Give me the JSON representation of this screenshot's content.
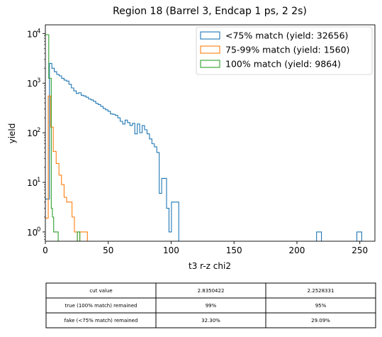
{
  "chart_data": {
    "type": "histogram",
    "title": "Region 18 (Barrel 3, Endcap 1 ps, 2 2s)",
    "xlabel": "t3 r-z chi2",
    "ylabel": "yield",
    "xlim": [
      0,
      262
    ],
    "ylim": [
      0.65,
      15000
    ],
    "yscale": "log",
    "grid": false,
    "legend_position": "top-right",
    "x_ticks": [
      {
        "value": 0,
        "label": "0"
      },
      {
        "value": 50,
        "label": "50"
      },
      {
        "value": 100,
        "label": "100"
      },
      {
        "value": 150,
        "label": "150"
      },
      {
        "value": 200,
        "label": "200"
      },
      {
        "value": 250,
        "label": "250"
      }
    ],
    "y_ticks": [
      {
        "value": 1,
        "label": "10",
        "exp": "0"
      },
      {
        "value": 10,
        "label": "10",
        "exp": "1"
      },
      {
        "value": 100,
        "label": "10",
        "exp": "2"
      },
      {
        "value": 1000,
        "label": "10",
        "exp": "3"
      },
      {
        "value": 10000,
        "label": "10",
        "exp": "4"
      }
    ],
    "series": [
      {
        "name": "<75% match (yield: 32656)",
        "color": "#1f77b4",
        "points": [
          [
            0,
            4.6
          ],
          [
            3.24,
            2500
          ],
          [
            5.17,
            2000
          ],
          [
            7.11,
            1700
          ],
          [
            9.05,
            1500
          ],
          [
            10.99,
            1400
          ],
          [
            12.93,
            1250
          ],
          [
            14.87,
            1150
          ],
          [
            16.81,
            1100
          ],
          [
            18.75,
            950
          ],
          [
            20.69,
            800
          ],
          [
            22.63,
            700
          ],
          [
            24.57,
            620
          ],
          [
            26.51,
            640
          ],
          [
            28.45,
            570
          ],
          [
            30.39,
            550
          ],
          [
            32.33,
            520
          ],
          [
            34.27,
            480
          ],
          [
            36.21,
            460
          ],
          [
            38.15,
            430
          ],
          [
            40.09,
            390
          ],
          [
            42.03,
            370
          ],
          [
            43.97,
            340
          ],
          [
            45.91,
            310
          ],
          [
            47.85,
            290
          ],
          [
            49.79,
            270
          ],
          [
            51.73,
            240
          ],
          [
            53.67,
            235
          ],
          [
            55.61,
            225
          ],
          [
            57.55,
            200
          ],
          [
            59.49,
            170
          ],
          [
            61.43,
            150
          ],
          [
            63.37,
            180
          ],
          [
            65.31,
            160
          ],
          [
            67.25,
            140
          ],
          [
            69.19,
            155
          ],
          [
            71.13,
            95
          ],
          [
            73.07,
            150
          ],
          [
            75.01,
            100
          ],
          [
            76.95,
            140
          ],
          [
            78.89,
            115
          ],
          [
            80.83,
            95
          ],
          [
            82.77,
            75
          ],
          [
            84.71,
            60
          ],
          [
            86.65,
            52
          ],
          [
            88.59,
            40
          ],
          [
            90.53,
            6
          ],
          [
            92.47,
            12
          ],
          [
            94.41,
            12
          ],
          [
            96.35,
            3
          ],
          [
            98.29,
            1
          ],
          [
            100.23,
            4
          ],
          [
            102.17,
            4
          ],
          [
            104.11,
            4
          ],
          [
            106.05,
            0
          ],
          [
            215.61,
            1
          ],
          [
            219.49,
            0
          ],
          [
            247.63,
            1
          ],
          [
            251.51,
            0
          ]
        ]
      },
      {
        "name": "75-99% match (yield: 1560)",
        "color": "#ff7f0e",
        "points": [
          [
            0,
            1.9
          ],
          [
            2.3,
            550
          ],
          [
            4.2,
            130
          ],
          [
            6.3,
            42
          ],
          [
            8.6,
            24
          ],
          [
            10.8,
            14
          ],
          [
            12.8,
            9
          ],
          [
            14.9,
            5
          ],
          [
            16.9,
            4
          ],
          [
            19.2,
            4
          ],
          [
            21.2,
            2
          ],
          [
            23.1,
            1
          ],
          [
            25.4,
            0
          ],
          [
            27.4,
            1
          ],
          [
            33.4,
            0
          ]
        ]
      },
      {
        "name": "100% match (yield: 9864)",
        "color": "#2ca02c",
        "points": [
          [
            0,
            9500
          ],
          [
            2.7,
            1250
          ],
          [
            4.7,
            3
          ],
          [
            5.6,
            2
          ],
          [
            6.6,
            1
          ],
          [
            8.5,
            1
          ],
          [
            10.2,
            0
          ],
          [
            25.4,
            1
          ],
          [
            27.4,
            0
          ]
        ]
      }
    ]
  },
  "table": {
    "rows": [
      [
        "cut value",
        "2.8350422",
        "2.2528331"
      ],
      [
        "true (100% match) remained",
        "99%",
        "95%"
      ],
      [
        "fake (<75% match) remained",
        "32.30%",
        "29.09%"
      ]
    ]
  }
}
